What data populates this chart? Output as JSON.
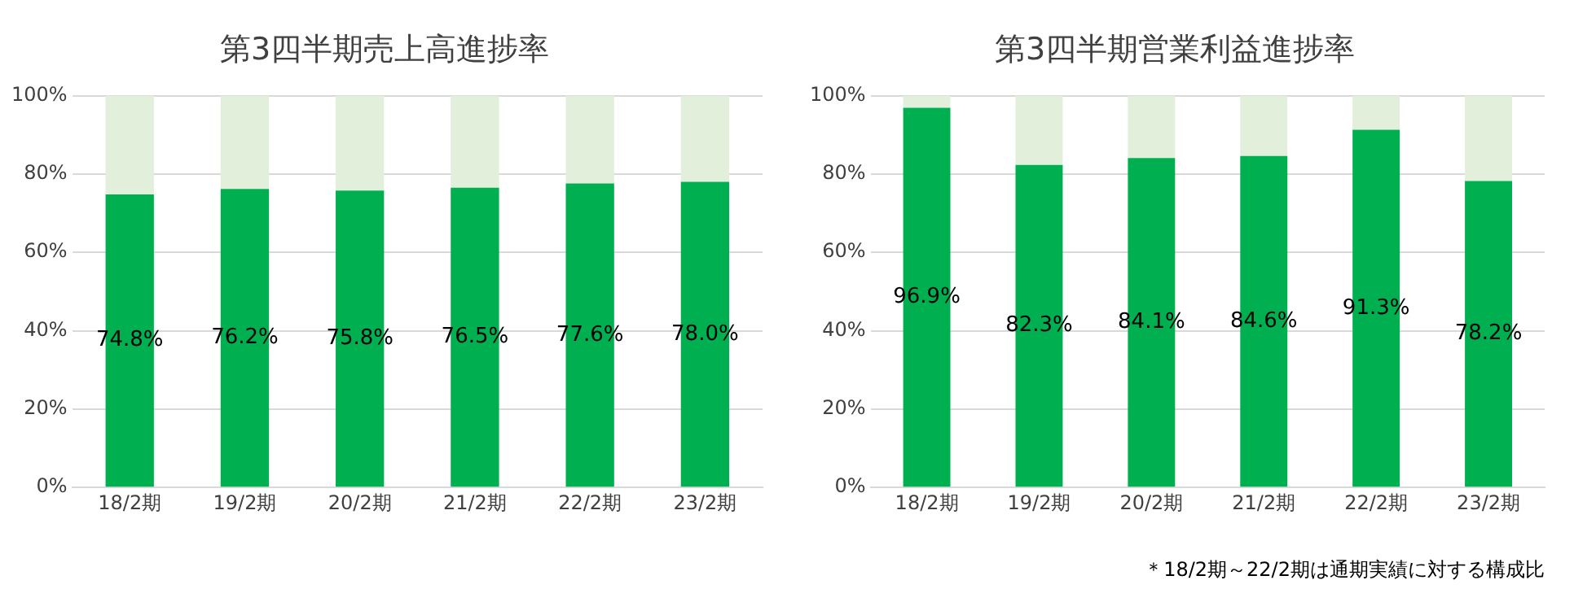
{
  "chart_data": [
    {
      "type": "bar",
      "title": "第3四半期売上高進捗率",
      "categories": [
        "18/2期",
        "19/2期",
        "20/2期",
        "21/2期",
        "22/2期",
        "23/2期"
      ],
      "stacked": true,
      "grid": "y",
      "legend": false,
      "ylim": [
        0,
        100
      ],
      "yticks": [
        {
          "value": 0,
          "label": "0%"
        },
        {
          "value": 20,
          "label": "20%"
        },
        {
          "value": 40,
          "label": "40%"
        },
        {
          "value": 60,
          "label": "60%"
        },
        {
          "value": 80,
          "label": "80%"
        },
        {
          "value": 100,
          "label": "100%"
        }
      ],
      "series": [
        {
          "color": "#00b050",
          "values": [
            74.8,
            76.2,
            75.8,
            76.5,
            77.6,
            78.0
          ],
          "value_labels": [
            "74.8%",
            "76.2%",
            "75.8%",
            "76.5%",
            "77.6%",
            "78.0%"
          ]
        },
        {
          "color": "#e2efda",
          "values": [
            25.2,
            23.8,
            24.2,
            23.5,
            22.4,
            22.0
          ]
        }
      ]
    },
    {
      "type": "bar",
      "title": "第3四半期営業利益進捗率",
      "categories": [
        "18/2期",
        "19/2期",
        "20/2期",
        "21/2期",
        "22/2期",
        "23/2期"
      ],
      "stacked": true,
      "grid": "y",
      "legend": false,
      "ylim": [
        0,
        100
      ],
      "yticks": [
        {
          "value": 0,
          "label": "0%"
        },
        {
          "value": 20,
          "label": "20%"
        },
        {
          "value": 40,
          "label": "40%"
        },
        {
          "value": 60,
          "label": "60%"
        },
        {
          "value": 80,
          "label": "80%"
        },
        {
          "value": 100,
          "label": "100%"
        }
      ],
      "annotations": [
        "＊18/2期～22/2期は通期実績に対する構成比"
      ],
      "series": [
        {
          "color": "#00b050",
          "values": [
            96.9,
            82.3,
            84.1,
            84.6,
            91.3,
            78.2
          ],
          "value_labels": [
            "96.9%",
            "82.3%",
            "84.1%",
            "84.6%",
            "91.3%",
            "78.2%"
          ]
        },
        {
          "color": "#e2efda",
          "values": [
            3.1,
            17.7,
            15.9,
            15.4,
            8.7,
            21.8
          ]
        }
      ]
    }
  ]
}
